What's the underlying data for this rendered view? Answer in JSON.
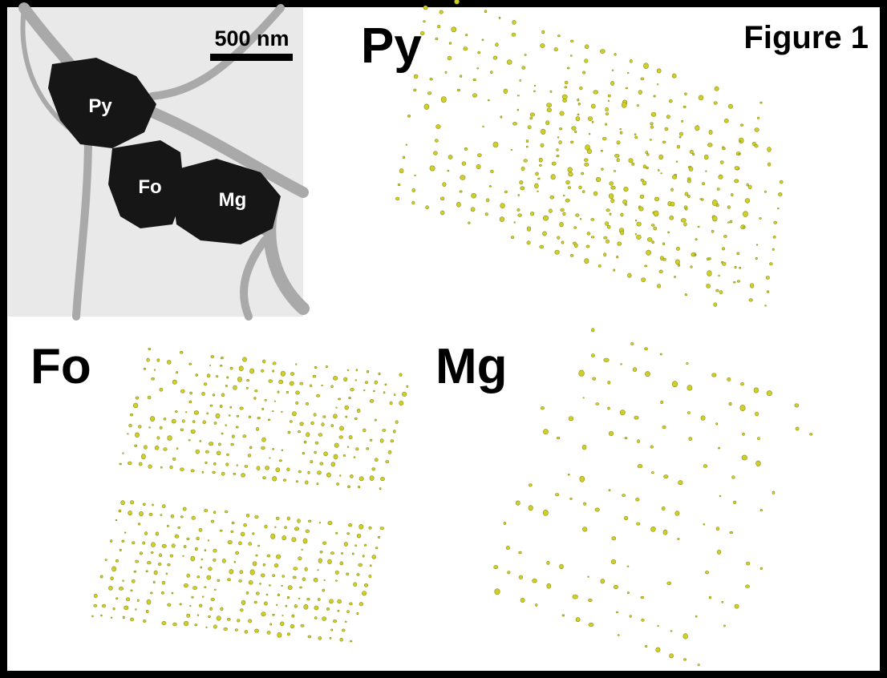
{
  "figure_label": "Figure 1",
  "tem_image": {
    "scale_bar": "500 nm",
    "labels": [
      "Py",
      "Fo",
      "Mg"
    ]
  },
  "panels": [
    {
      "label": "Py"
    },
    {
      "label": "Fo"
    },
    {
      "label": "Mg"
    }
  ]
}
